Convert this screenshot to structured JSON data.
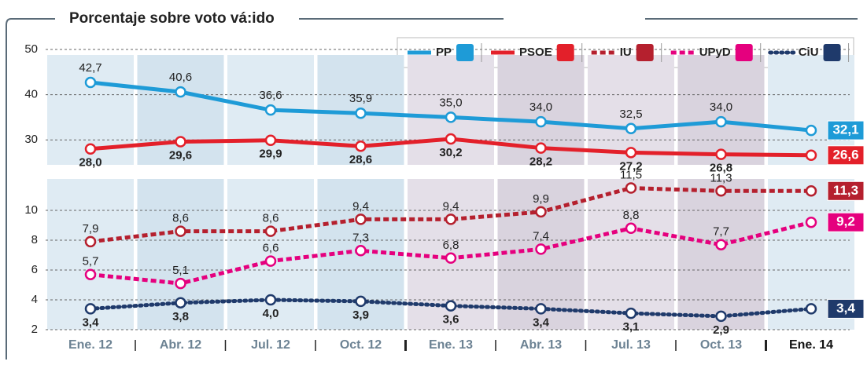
{
  "chart_data": [
    {
      "type": "line",
      "title": "Porcentaje sobre voto vá:ido",
      "ylim": [
        25,
        50
      ],
      "yticks": [
        30,
        40,
        50
      ],
      "grid": true,
      "series": [
        {
          "name": "PP",
          "color": "#1e9bd7",
          "style": "solid",
          "values": [
            42.7,
            40.6,
            36.6,
            35.9,
            35.0,
            34.0,
            32.5,
            34.0,
            32.1
          ],
          "value_labels": [
            "42,7",
            "40,6",
            "36,6",
            "35,9",
            "35,0",
            "34,0",
            "32,5",
            "34,0",
            "32,1"
          ]
        },
        {
          "name": "PSOE",
          "color": "#e3202a",
          "style": "solid",
          "values": [
            28.0,
            29.6,
            29.9,
            28.6,
            30.2,
            28.2,
            27.2,
            26.8,
            26.6
          ],
          "value_labels": [
            "28,0",
            "29,6",
            "29,9",
            "28,6",
            "30,2",
            "28,2",
            "27,2",
            "26,8",
            "26,6"
          ]
        }
      ]
    },
    {
      "type": "line",
      "categories": [
        "Ene. 12",
        "Abr. 12",
        "Jul. 12",
        "Oct. 12",
        "Ene. 13",
        "Abr. 13",
        "Jul. 13",
        "Oct. 13",
        "Ene. 14"
      ],
      "ylim": [
        2,
        12
      ],
      "yticks": [
        2,
        4,
        6,
        8,
        10
      ],
      "grid": true,
      "series": [
        {
          "name": "IU",
          "color": "#b5202e",
          "style": "dashed",
          "values": [
            7.9,
            8.6,
            8.6,
            9.4,
            9.4,
            9.9,
            11.5,
            11.3,
            11.3
          ],
          "value_labels": [
            "7,9",
            "8,6",
            "8,6",
            "9,4",
            "9,4",
            "9,9",
            "11,5",
            "11,3",
            "11,3"
          ]
        },
        {
          "name": "UPyD",
          "color": "#e5007e",
          "style": "dashed",
          "values": [
            5.7,
            5.1,
            6.6,
            7.3,
            6.8,
            7.4,
            8.8,
            7.7,
            9.2
          ],
          "value_labels": [
            "5,7",
            "5,1",
            "6,6",
            "7,3",
            "6,8",
            "7,4",
            "8,8",
            "7,7",
            "9,2"
          ]
        },
        {
          "name": "CiU",
          "color": "#1f3a6b",
          "style": "dotted",
          "values": [
            3.4,
            3.8,
            4.0,
            3.9,
            3.6,
            3.4,
            3.1,
            2.9,
            3.4
          ],
          "value_labels": [
            "3,4",
            "3,8",
            "4,0",
            "3,9",
            "3,6",
            "3,4",
            "3,1",
            "2,9",
            "3,4"
          ]
        }
      ]
    }
  ]
}
